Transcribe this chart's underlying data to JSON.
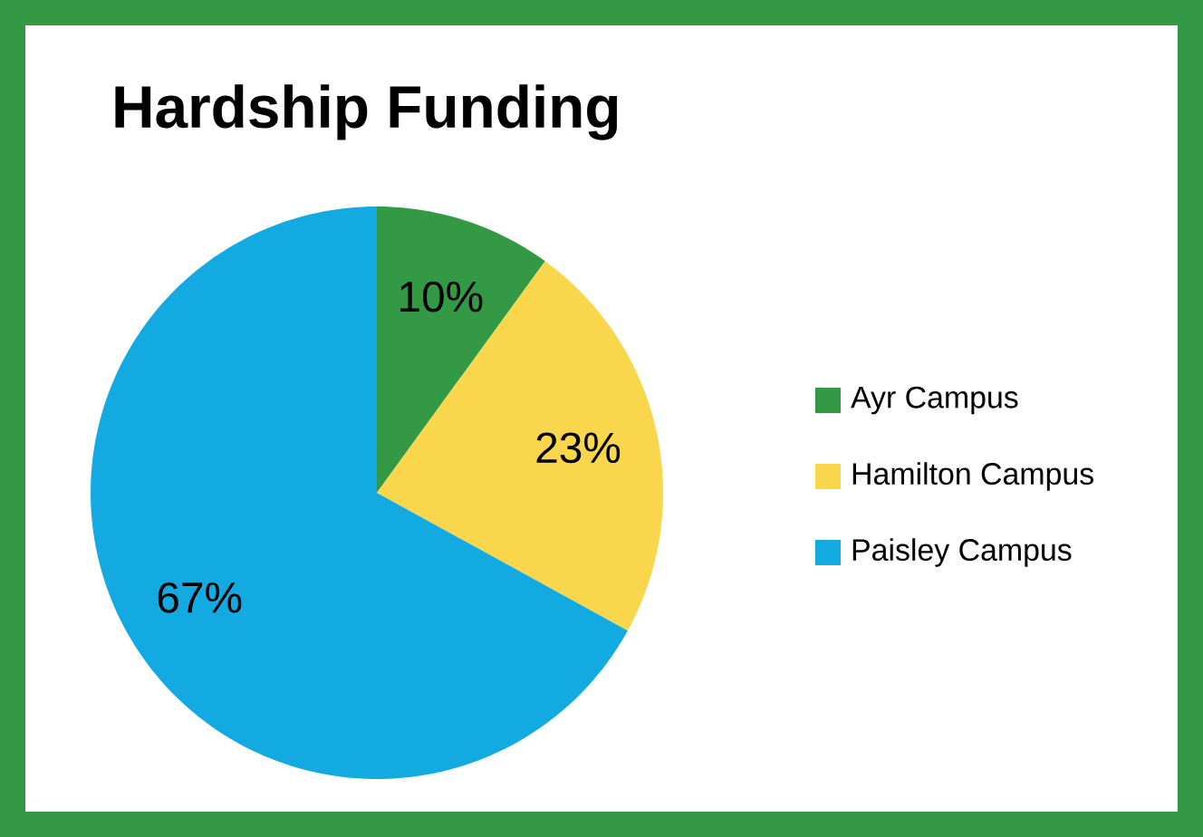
{
  "chart_data": {
    "type": "pie",
    "title": "Hardship Funding",
    "categories": [
      "Ayr Campus",
      "Hamilton Campus",
      "Paisley Campus"
    ],
    "values": [
      10,
      23,
      67
    ],
    "value_labels": [
      "10%",
      "23%",
      "67%"
    ],
    "colors": [
      "#339944",
      "#f9d64c",
      "#13aae2"
    ],
    "legend": "right"
  }
}
